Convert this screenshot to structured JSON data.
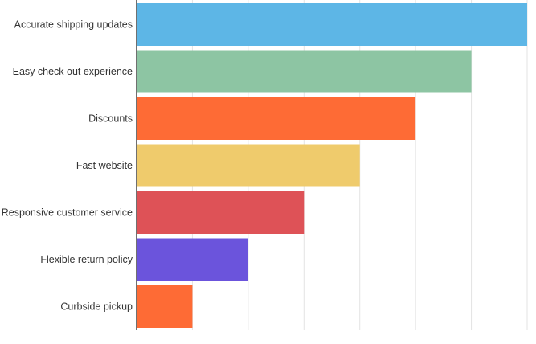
{
  "chart_data": {
    "type": "bar",
    "orientation": "horizontal",
    "title": "",
    "xlabel": "",
    "ylabel": "",
    "categories": [
      "Accurate shipping updates",
      "Easy check out experience",
      "Discounts",
      "Fast website",
      "Responsive customer service",
      "Flexible return policy",
      "Curbside pickup"
    ],
    "values": [
      7,
      6,
      5,
      4,
      3,
      2,
      1
    ],
    "colors": [
      "#5DB6E6",
      "#8DC5A3",
      "#FE6B35",
      "#EFCB6C",
      "#DE5257",
      "#6B54DC",
      "#FE6B35"
    ],
    "xlim": [
      0,
      7
    ],
    "grid": true,
    "gridline_step": 1,
    "tick_labels_visible": false
  }
}
